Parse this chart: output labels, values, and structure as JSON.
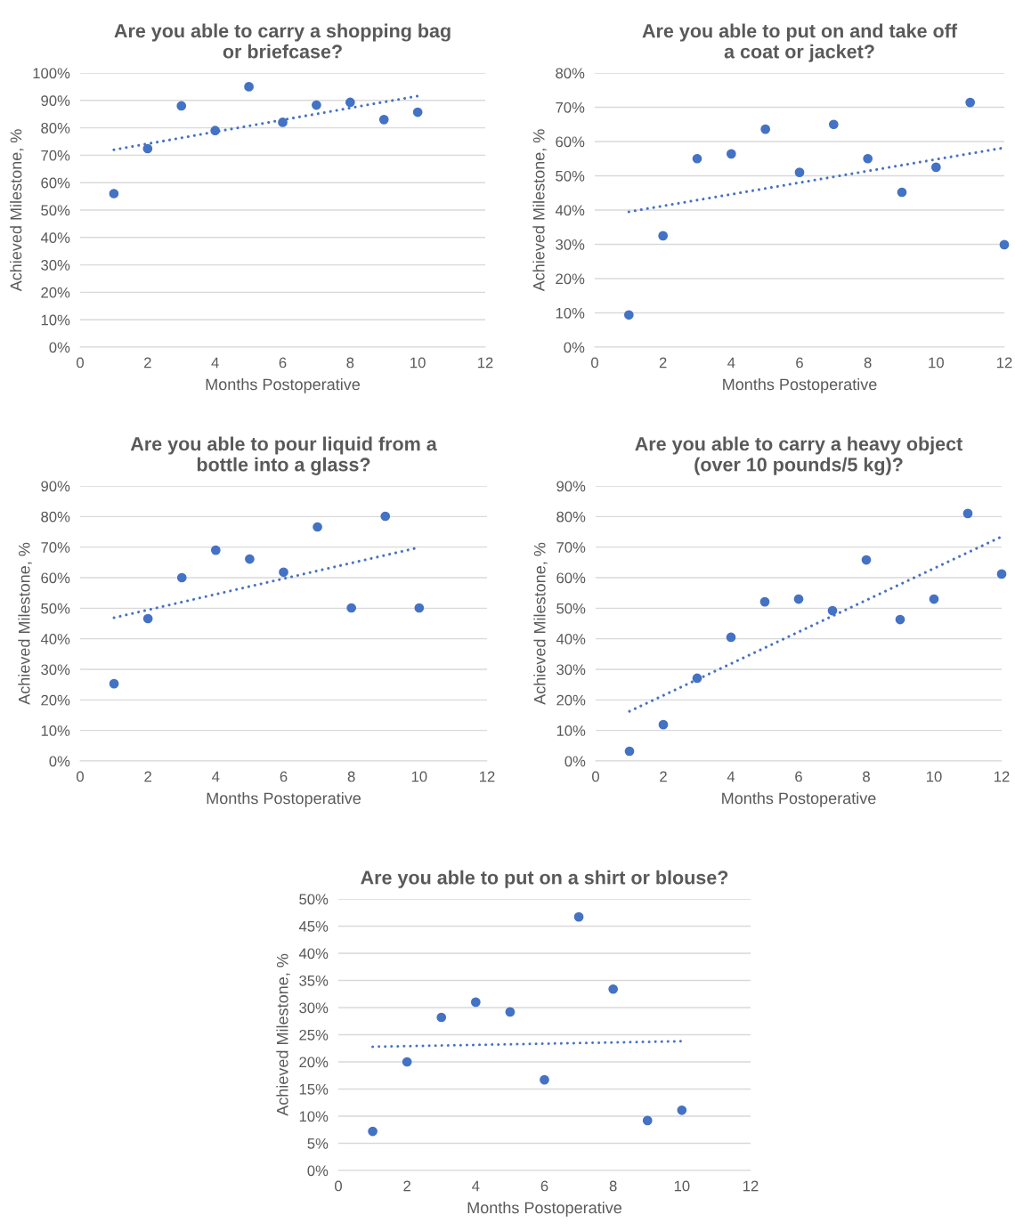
{
  "chart_data": [
    {
      "type": "scatter",
      "title": "Are you able to carry a shopping bag\nor briefcase?",
      "xlabel": "Months Postoperative",
      "ylabel": "Achieved Milestone, %",
      "xlim": [
        0,
        12
      ],
      "xticks": [
        0,
        2,
        4,
        6,
        8,
        10,
        12
      ],
      "ylim": [
        0,
        100
      ],
      "yticks": [
        {
          "value": 0,
          "label": "0%"
        },
        {
          "value": 10,
          "label": "10%"
        },
        {
          "value": 20,
          "label": "20%"
        },
        {
          "value": 30,
          "label": "30%"
        },
        {
          "value": 40,
          "label": "40%"
        },
        {
          "value": 50,
          "label": "50%"
        },
        {
          "value": 60,
          "label": "60%"
        },
        {
          "value": 70,
          "label": "70%"
        },
        {
          "value": 80,
          "label": "80%"
        },
        {
          "value": 90,
          "label": "90%"
        },
        {
          "value": 100,
          "label": "100%"
        }
      ],
      "grid": "y",
      "series": [
        {
          "marker": "circle",
          "color": "#4472c4",
          "x": [
            1,
            2,
            3,
            4,
            5,
            6,
            7,
            8,
            9,
            10
          ],
          "values": [
            56,
            72.4,
            88,
            79,
            95,
            82,
            88.3,
            89.3,
            83,
            85.7
          ]
        },
        {
          "type": "line",
          "line_style": "dotted",
          "color": "#4472c4",
          "x": [
            1,
            10
          ],
          "values": [
            72,
            91.6
          ]
        }
      ]
    },
    {
      "type": "scatter",
      "title": "Are you able to put on and take off\na coat or jacket?",
      "xlabel": "Months Postoperative",
      "ylabel": "Achieved Milestone, %",
      "xlim": [
        0,
        12
      ],
      "xticks": [
        0,
        2,
        4,
        6,
        8,
        10,
        12
      ],
      "ylim": [
        0,
        80
      ],
      "yticks": [
        {
          "value": 0,
          "label": "0%"
        },
        {
          "value": 10,
          "label": "10%"
        },
        {
          "value": 20,
          "label": "20%"
        },
        {
          "value": 30,
          "label": "30%"
        },
        {
          "value": 40,
          "label": "40%"
        },
        {
          "value": 50,
          "label": "50%"
        },
        {
          "value": 60,
          "label": "60%"
        },
        {
          "value": 70,
          "label": "70%"
        },
        {
          "value": 80,
          "label": "80%"
        }
      ],
      "grid": "y",
      "series": [
        {
          "marker": "circle",
          "color": "#4472c4",
          "x": [
            1,
            2,
            3,
            4,
            5,
            6,
            7,
            8,
            9,
            10,
            11,
            12
          ],
          "values": [
            9.4,
            32.5,
            55,
            56.4,
            63.6,
            51,
            65,
            55,
            45.2,
            52.5,
            71.4,
            29.9
          ]
        },
        {
          "type": "line",
          "line_style": "dotted",
          "color": "#4472c4",
          "x": [
            1,
            12
          ],
          "values": [
            39.5,
            58.2
          ]
        }
      ]
    },
    {
      "type": "scatter",
      "title": "Are you able to pour liquid from a\nbottle into a glass?",
      "xlabel": "Months Postoperative",
      "ylabel": "Achieved Milestone, %",
      "xlim": [
        0,
        12
      ],
      "xticks": [
        0,
        2,
        4,
        6,
        8,
        10,
        12
      ],
      "ylim": [
        0,
        90
      ],
      "yticks": [
        {
          "value": 0,
          "label": "0%"
        },
        {
          "value": 10,
          "label": "10%"
        },
        {
          "value": 20,
          "label": "20%"
        },
        {
          "value": 30,
          "label": "30%"
        },
        {
          "value": 40,
          "label": "40%"
        },
        {
          "value": 50,
          "label": "50%"
        },
        {
          "value": 60,
          "label": "60%"
        },
        {
          "value": 70,
          "label": "70%"
        },
        {
          "value": 80,
          "label": "80%"
        },
        {
          "value": 90,
          "label": "90%"
        }
      ],
      "grid": "y",
      "series": [
        {
          "marker": "circle",
          "color": "#4472c4",
          "x": [
            1,
            2,
            3,
            4,
            5,
            6,
            7,
            8,
            9,
            10
          ],
          "values": [
            25.3,
            46.6,
            60,
            69,
            66.1,
            61.8,
            76.6,
            50.1,
            80.1,
            50.1
          ]
        },
        {
          "type": "line",
          "line_style": "dotted",
          "color": "#4472c4",
          "x": [
            1,
            10
          ],
          "values": [
            46.9,
            69.9
          ]
        }
      ]
    },
    {
      "type": "scatter",
      "title": "Are you able to carry a heavy object\n(over 10 pounds/5 kg)?",
      "xlabel": "Months Postoperative",
      "ylabel": "Achieved Milestone, %",
      "xlim": [
        0,
        12
      ],
      "xticks": [
        0,
        2,
        4,
        6,
        8,
        10,
        12
      ],
      "ylim": [
        0,
        90
      ],
      "yticks": [
        {
          "value": 0,
          "label": "0%"
        },
        {
          "value": 10,
          "label": "10%"
        },
        {
          "value": 20,
          "label": "20%"
        },
        {
          "value": 30,
          "label": "30%"
        },
        {
          "value": 40,
          "label": "40%"
        },
        {
          "value": 50,
          "label": "50%"
        },
        {
          "value": 60,
          "label": "60%"
        },
        {
          "value": 70,
          "label": "70%"
        },
        {
          "value": 80,
          "label": "80%"
        },
        {
          "value": 90,
          "label": "90%"
        }
      ],
      "grid": "y",
      "series": [
        {
          "marker": "circle",
          "color": "#4472c4",
          "x": [
            1,
            2,
            3,
            4,
            5,
            6,
            7,
            8,
            9,
            10,
            11,
            12
          ],
          "values": [
            3.2,
            11.9,
            27.1,
            40.5,
            52.1,
            53,
            49.2,
            65.8,
            46.3,
            53,
            81,
            61.2
          ]
        },
        {
          "type": "line",
          "line_style": "dotted",
          "color": "#4472c4",
          "x": [
            1,
            12
          ],
          "values": [
            16.3,
            73.4
          ]
        }
      ]
    },
    {
      "type": "scatter",
      "title": "Are you able to put on a shirt or blouse?",
      "xlabel": "Months Postoperative",
      "ylabel": "Achieved Milestone, %",
      "xlim": [
        0,
        12
      ],
      "xticks": [
        0,
        2,
        4,
        6,
        8,
        10,
        12
      ],
      "ylim": [
        0,
        50
      ],
      "yticks": [
        {
          "value": 0,
          "label": "0%"
        },
        {
          "value": 5,
          "label": "5%"
        },
        {
          "value": 10,
          "label": "10%"
        },
        {
          "value": 15,
          "label": "15%"
        },
        {
          "value": 20,
          "label": "20%"
        },
        {
          "value": 25,
          "label": "25%"
        },
        {
          "value": 30,
          "label": "30%"
        },
        {
          "value": 35,
          "label": "35%"
        },
        {
          "value": 40,
          "label": "40%"
        },
        {
          "value": 45,
          "label": "45%"
        },
        {
          "value": 50,
          "label": "50%"
        }
      ],
      "grid": "y",
      "series": [
        {
          "marker": "circle",
          "color": "#4472c4",
          "x": [
            1,
            2,
            3,
            4,
            5,
            6,
            7,
            8,
            9,
            10
          ],
          "values": [
            7.2,
            20,
            28.2,
            31,
            29.2,
            16.7,
            46.7,
            33.4,
            9.2,
            11.1
          ]
        },
        {
          "type": "line",
          "line_style": "dotted",
          "color": "#4472c4",
          "x": [
            1,
            10
          ],
          "values": [
            22.8,
            23.8
          ]
        }
      ]
    }
  ]
}
